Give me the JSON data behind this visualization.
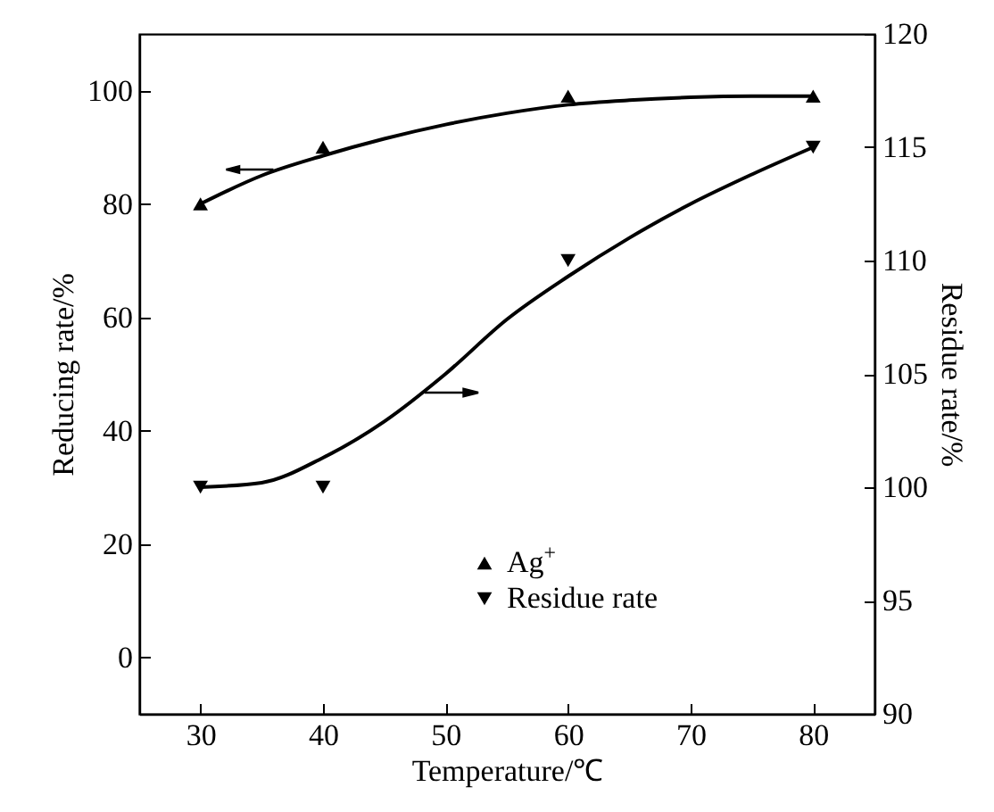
{
  "chart_data": {
    "type": "scatter",
    "xlabel": "Temperature/℃",
    "ylabel": "Reducing rate/%",
    "y2label": "Residue rate/%",
    "xlim": [
      25,
      85
    ],
    "xticks": [
      30,
      40,
      50,
      60,
      70,
      80
    ],
    "ylim": [
      -10,
      110
    ],
    "yticks": [
      0,
      20,
      40,
      60,
      80,
      100
    ],
    "y2lim": [
      90,
      120
    ],
    "y2ticks": [
      90,
      95,
      100,
      105,
      110,
      115,
      120
    ],
    "legend": "bottom right",
    "series": [
      {
        "name": "Ag$^{+}$",
        "marker": "triangle",
        "color": "#000000",
        "x": [
          30,
          40,
          60,
          80
        ],
        "values": [
          80,
          90,
          99,
          99
        ]
      },
      {
        "name": "Residue rate",
        "marker": "triangle-down",
        "color": "#000000",
        "axis": "y2",
        "x": [
          30,
          40,
          60,
          80
        ],
        "values": [
          100,
          100,
          110,
          115
        ]
      },
      {
        "type": "line",
        "color": "#000000",
        "x": [
          30,
          35,
          40,
          45,
          50,
          55,
          60,
          65,
          70,
          75,
          80
        ],
        "values": [
          80,
          85,
          88.5,
          91.5,
          94,
          96,
          97.5,
          98.3,
          98.8,
          99,
          99
        ]
      },
      {
        "type": "line",
        "color": "#000000",
        "axis": "y2",
        "x": [
          30,
          35,
          40,
          45,
          50,
          55,
          60,
          65,
          70,
          75,
          80
        ],
        "values": [
          100,
          100.2,
          101.3,
          102.9,
          105,
          107.4,
          109.3,
          111,
          112.5,
          113.8,
          115
        ]
      }
    ]
  }
}
